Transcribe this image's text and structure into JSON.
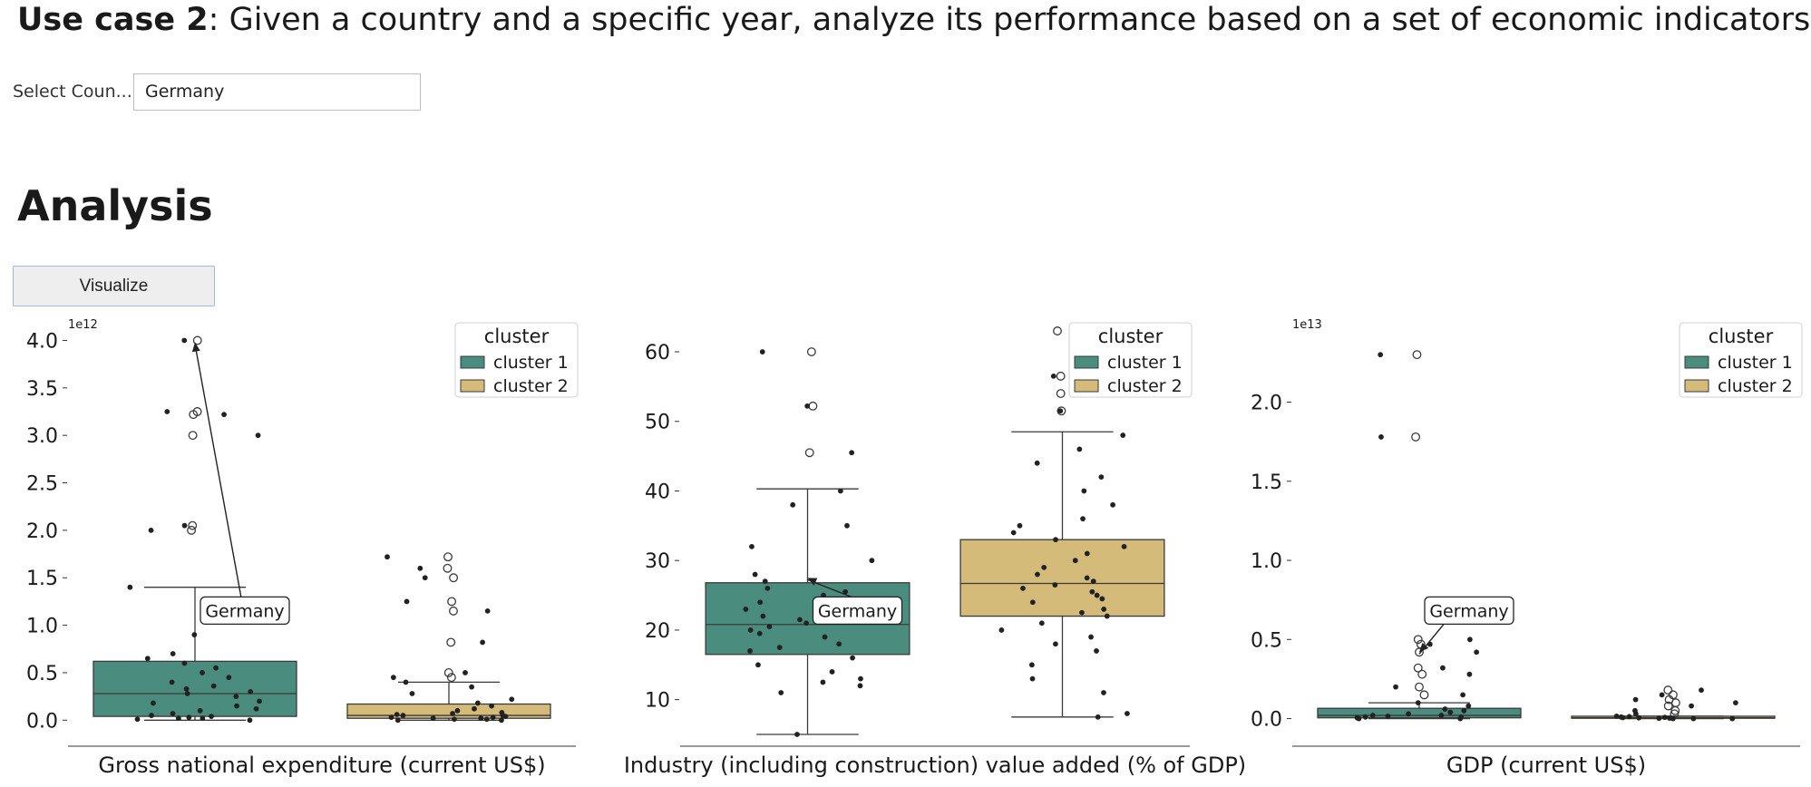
{
  "header": {
    "usecase_bold": "Use case 2",
    "usecase_rest": ": Given a country and a specific year, analyze its performance based on a set of economic indicators."
  },
  "country_select": {
    "label": "Select Coun...",
    "value": "Germany"
  },
  "analysis": {
    "heading": "Analysis",
    "visualize_label": "Visualize"
  },
  "colors": {
    "cluster1": "#4a8c7e",
    "cluster2": "#d4bb79",
    "points": "#222222"
  },
  "chart_data": [
    {
      "type": "box",
      "xlabel": "Gross national expenditure (current US$)",
      "offset_label": "1e12",
      "ylim": [
        -0.15,
        4.1
      ],
      "yticks": [
        0.0,
        0.5,
        1.0,
        1.5,
        2.0,
        2.5,
        3.0,
        3.5,
        4.0
      ],
      "legend": {
        "title": "cluster",
        "entries": [
          "cluster 1",
          "cluster 2"
        ],
        "position": "top-right"
      },
      "annotation": {
        "text": "Germany",
        "x": 0,
        "y": 3.98
      },
      "series": [
        {
          "name": "cluster 1",
          "box": {
            "q1": 0.04,
            "median": 0.28,
            "q3": 0.62,
            "whisker_low": 0.0,
            "whisker_high": 1.4
          },
          "outliers": [
            2.0,
            2.05,
            3.0,
            3.22,
            3.25,
            4.0
          ],
          "points": [
            0.0,
            0.01,
            0.02,
            0.02,
            0.03,
            0.04,
            0.05,
            0.07,
            0.1,
            0.12,
            0.15,
            0.18,
            0.2,
            0.25,
            0.28,
            0.3,
            0.33,
            0.36,
            0.4,
            0.45,
            0.5,
            0.55,
            0.6,
            0.65,
            0.7,
            0.9,
            1.4,
            2.0,
            2.05,
            3.0,
            3.22,
            3.25,
            4.0
          ]
        },
        {
          "name": "cluster 2",
          "box": {
            "q1": 0.02,
            "median": 0.05,
            "q3": 0.17,
            "whisker_low": 0.0,
            "whisker_high": 0.4
          },
          "outliers": [
            0.45,
            0.5,
            0.82,
            1.15,
            1.25,
            1.5,
            1.6,
            1.72
          ],
          "points": [
            0.0,
            0.0,
            0.01,
            0.01,
            0.02,
            0.02,
            0.03,
            0.03,
            0.04,
            0.05,
            0.05,
            0.06,
            0.07,
            0.08,
            0.1,
            0.12,
            0.15,
            0.18,
            0.22,
            0.28,
            0.35,
            0.4,
            0.45,
            0.5,
            0.82,
            1.15,
            1.25,
            1.5,
            1.6,
            1.72
          ]
        }
      ]
    },
    {
      "type": "box",
      "xlabel": "Industry (including construction) value added (% of GDP)",
      "offset_label": "",
      "ylim": [
        5,
        63
      ],
      "yticks": [
        10,
        20,
        30,
        40,
        50,
        60
      ],
      "legend": {
        "title": "cluster",
        "entries": [
          "cluster 1",
          "cluster 2"
        ],
        "position": "top-right"
      },
      "annotation": {
        "text": "Germany",
        "x": 0,
        "y": 27.5
      },
      "series": [
        {
          "name": "cluster 1",
          "box": {
            "q1": 16.5,
            "median": 20.8,
            "q3": 26.8,
            "whisker_low": 5.0,
            "whisker_high": 40.3
          },
          "outliers": [
            45.5,
            52.2,
            60.0
          ],
          "points": [
            5.0,
            11.0,
            12.0,
            12.5,
            13.0,
            14.0,
            15.0,
            16.0,
            17.0,
            17.5,
            18.0,
            19.0,
            19.5,
            20.0,
            20.5,
            21.0,
            21.5,
            22.0,
            23.0,
            24.0,
            25.0,
            25.5,
            26.0,
            27.0,
            28.0,
            30.0,
            32.0,
            35.0,
            38.0,
            40.0,
            45.5,
            52.2,
            60.0
          ]
        },
        {
          "name": "cluster 2",
          "box": {
            "q1": 22.0,
            "median": 26.7,
            "q3": 33.0,
            "whisker_low": 7.5,
            "whisker_high": 48.5
          },
          "outliers": [
            51.5,
            54.0,
            56.5,
            63.0
          ],
          "points": [
            7.5,
            8.0,
            11.0,
            13.0,
            15.0,
            17.0,
            18.0,
            19.0,
            20.0,
            21.0,
            22.0,
            22.5,
            23.0,
            24.0,
            24.5,
            25.0,
            25.5,
            26.0,
            26.5,
            27.0,
            27.5,
            28.0,
            29.0,
            30.0,
            31.0,
            32.0,
            33.0,
            34.0,
            35.0,
            36.0,
            38.0,
            40.0,
            42.0,
            44.0,
            46.0,
            48.0,
            51.5,
            54.0,
            56.5,
            63.0
          ]
        }
      ]
    },
    {
      "type": "box",
      "xlabel": "GDP (current US$)",
      "offset_label": "1e13",
      "ylim": [
        -0.1,
        2.45
      ],
      "yticks": [
        0.0,
        0.5,
        1.0,
        1.5,
        2.0
      ],
      "legend": {
        "title": "cluster",
        "entries": [
          "cluster 1",
          "cluster 2"
        ],
        "position": "top-right"
      },
      "annotation": {
        "text": "Germany",
        "x": 0,
        "y": 0.42
      },
      "series": [
        {
          "name": "cluster 1",
          "box": {
            "q1": 0.005,
            "median": 0.02,
            "q3": 0.065,
            "whisker_low": 0.0,
            "whisker_high": 0.1
          },
          "outliers": [
            0.15,
            0.2,
            0.28,
            0.32,
            0.42,
            0.47,
            0.5,
            1.78,
            2.3
          ],
          "points": [
            0.0,
            0.0,
            0.005,
            0.01,
            0.01,
            0.015,
            0.02,
            0.02,
            0.03,
            0.04,
            0.05,
            0.06,
            0.08,
            0.1,
            0.15,
            0.2,
            0.28,
            0.32,
            0.42,
            0.47,
            0.5,
            1.78,
            2.3
          ]
        },
        {
          "name": "cluster 2",
          "box": {
            "q1": 0.002,
            "median": 0.005,
            "q3": 0.015,
            "whisker_low": 0.0,
            "whisker_high": 0.015
          },
          "outliers": [
            0.03,
            0.05,
            0.08,
            0.1,
            0.12,
            0.15,
            0.18
          ],
          "points": [
            0.0,
            0.0,
            0.0,
            0.002,
            0.003,
            0.005,
            0.006,
            0.008,
            0.01,
            0.012,
            0.015,
            0.03,
            0.05,
            0.08,
            0.1,
            0.12,
            0.15,
            0.18
          ]
        }
      ]
    }
  ]
}
